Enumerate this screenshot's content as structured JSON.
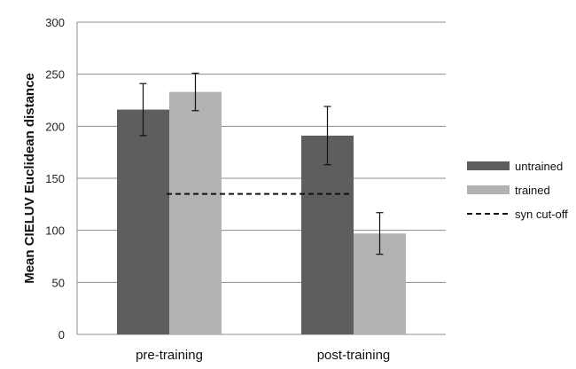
{
  "chart_data": {
    "type": "bar",
    "title": "",
    "xlabel": "",
    "ylabel": "Mean CIELUV Euclidean distance",
    "categories": [
      "pre-training",
      "post-training"
    ],
    "ylim": [
      0,
      300
    ],
    "yticks": [
      0,
      50,
      100,
      150,
      200,
      250,
      300
    ],
    "grid": true,
    "legend_position": "right",
    "series": [
      {
        "name": "untrained",
        "color": "#5f5d5f",
        "values": [
          216,
          191
        ],
        "error": [
          25,
          28
        ]
      },
      {
        "name": "trained",
        "color": "#b3b1b3",
        "values": [
          233,
          97
        ],
        "error": [
          18,
          20
        ]
      }
    ],
    "reference_line": {
      "name": "syn cut-off",
      "value": 135,
      "style": "dashed",
      "color": "#111111"
    }
  }
}
